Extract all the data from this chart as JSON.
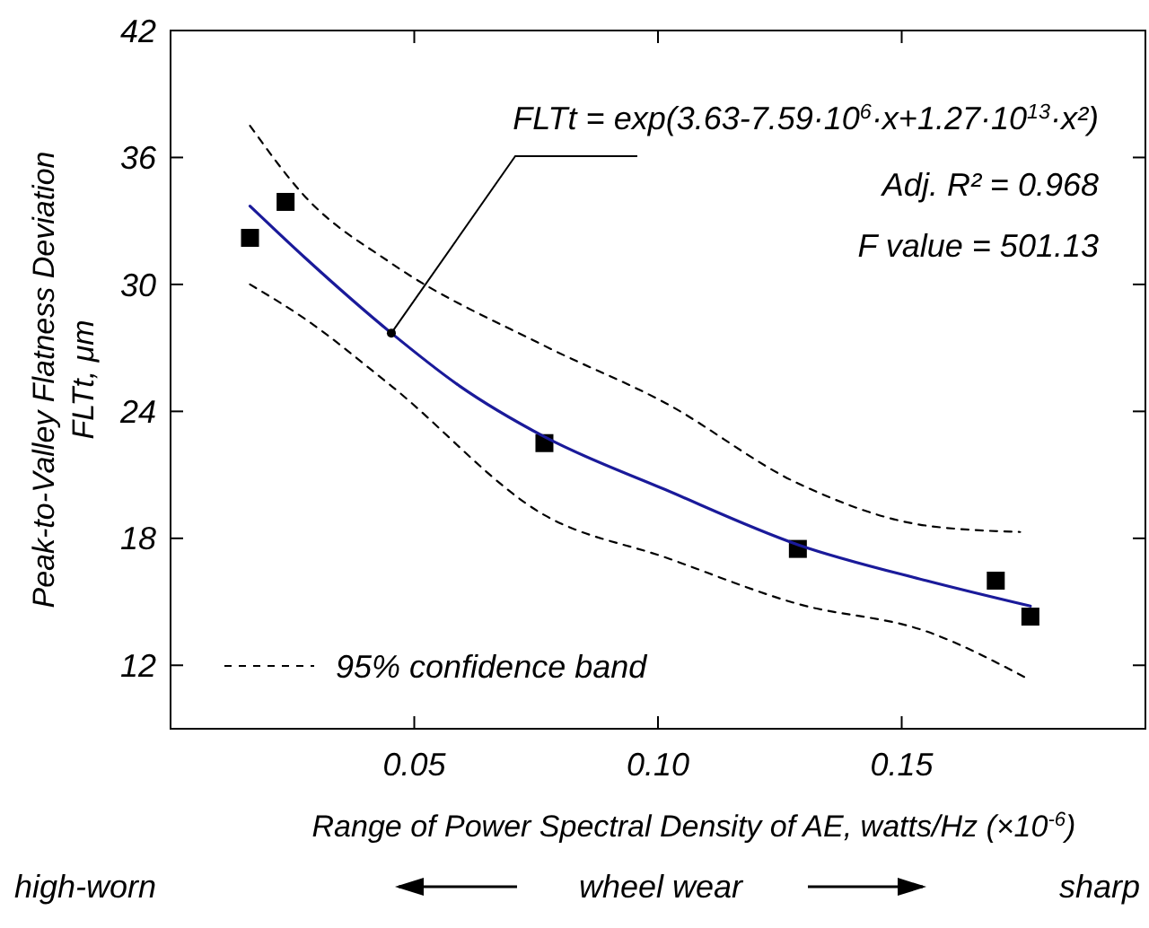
{
  "chart_data": {
    "type": "scatter",
    "xlabel": "Range of Power Spectral Density of AE, watts/Hz (×10$^{-6}$)",
    "ylabel": "Peak-to-Valley Flatness Deviation\nFLTt, μm",
    "xlim": [
      0,
      0.2
    ],
    "xticks": [
      0.05,
      {
        "value": 0.1,
        "label": "0.10"
      },
      0.15
    ],
    "ylim": [
      9,
      42
    ],
    "yticks": [
      12,
      18,
      24,
      30,
      36,
      42
    ],
    "grid": false,
    "legend": "bottom left",
    "marker": "square",
    "series": [
      {
        "color": "#000000",
        "x": [
          0.0163,
          0.0236,
          0.0767,
          0.1287,
          0.1693,
          0.1764
        ],
        "values": [
          32.2,
          33.9,
          22.5,
          17.5,
          16.0,
          14.3
        ]
      },
      {
        "type": "line",
        "color": "#1a1a9a",
        "marker": "none",
        "line_style": "solid",
        "x": [
          0.0163,
          0.0274,
          0.0453,
          0.0593,
          0.0767,
          0.1015,
          0.1287,
          0.1551,
          0.1764
        ],
        "values": [
          33.7,
          31.3,
          27.7,
          25.2,
          22.8,
          20.3,
          17.7,
          16.0,
          14.8
        ]
      },
      {
        "type": "line",
        "name": "95% confidence band",
        "color": "#000000",
        "marker": "none",
        "line_style": "dashed",
        "x": [
          0.0163,
          0.0274,
          0.0453,
          0.0767,
          0.1015,
          0.1287,
          0.1551,
          0.1743
        ],
        "values": [
          37.5,
          34.2,
          31.0,
          27.1,
          24.4,
          20.6,
          18.6,
          18.3
        ]
      },
      {
        "type": "line",
        "color": "#000000",
        "marker": "none",
        "line_style": "dashed",
        "x": [
          0.0163,
          0.0274,
          0.0453,
          0.0767,
          0.1015,
          0.1287,
          0.1551,
          0.1764
        ],
        "values": [
          30.0,
          28.4,
          25.2,
          19.1,
          17.1,
          14.9,
          13.6,
          11.3
        ]
      }
    ],
    "annotations": [
      {
        "text": "FLTt = exp(3.63-7.59·10$^{6}$·x+1.27·10$^{13}$·x²)",
        "x": 0.0453,
        "y": 27.7
      },
      "Adj. R² = 0.968",
      "F value = 501.13",
      "high-worn",
      "wheel wear",
      "sharp"
    ]
  }
}
